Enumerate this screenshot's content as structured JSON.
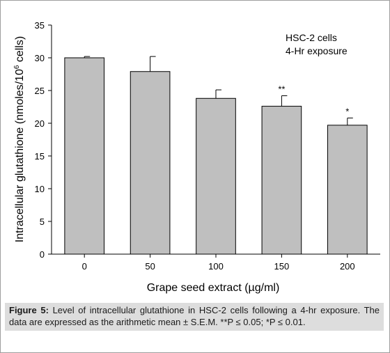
{
  "chart_data": {
    "type": "bar",
    "ylabel": "Intracellular glutathione (nmoles/10",
    "ylabel_sup": "6",
    "ylabel_tail": " cells)",
    "xlabel": "Grape seed extract (µg/ml)",
    "ylim": [
      0,
      35
    ],
    "yticks": [
      "0",
      "5",
      "10",
      "15",
      "20",
      "25",
      "30",
      "35"
    ],
    "categories": [
      "0",
      "50",
      "100",
      "150",
      "200"
    ],
    "values": [
      30.0,
      27.9,
      23.8,
      22.6,
      19.7
    ],
    "errors": [
      0.2,
      2.3,
      1.3,
      1.6,
      1.1
    ],
    "significance": [
      "",
      "",
      "",
      "**",
      "*"
    ],
    "annotation": [
      "HSC-2 cells",
      "4-Hr exposure"
    ],
    "bar_color": "#bfbfbf",
    "grid": false
  },
  "caption": {
    "label": "Figure 5:",
    "text": " Level of intracellular glutathione in HSC-2 cells following a 4-hr exposure. The data are expressed as the arithmetic mean ± S.E.M. **P ≤ 0.05; *P ≤ 0.01."
  }
}
